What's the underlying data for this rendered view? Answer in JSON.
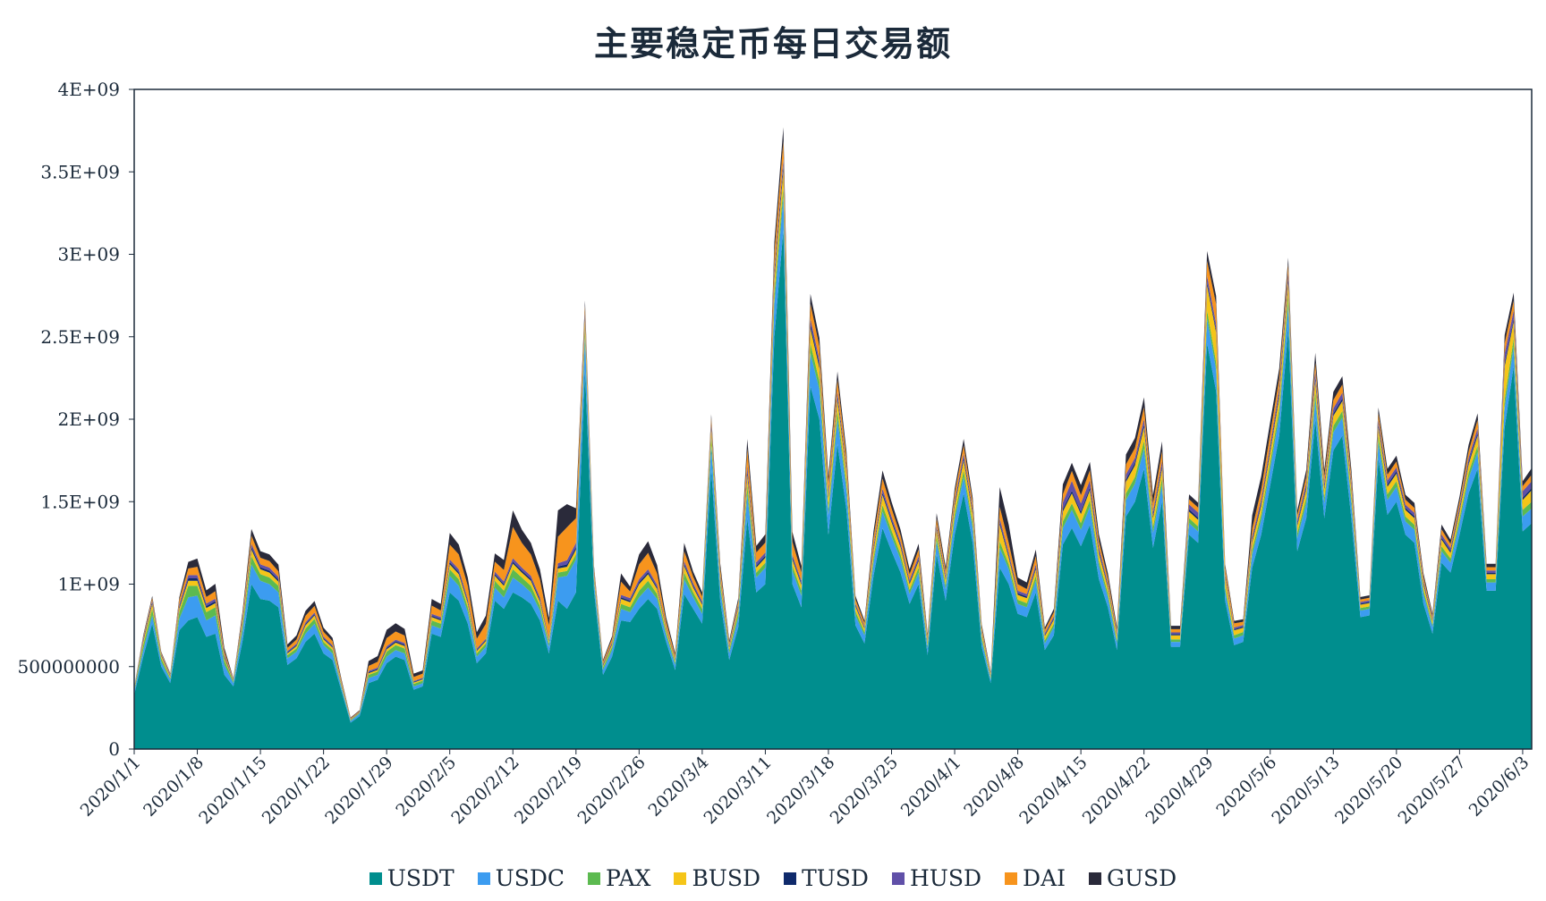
{
  "chart_data": {
    "type": "area",
    "stacked": true,
    "title": "主要稳定币每日交易额",
    "xlabel": "",
    "ylabel": "",
    "ylim": [
      0,
      4000000000
    ],
    "y_ticks": [
      0,
      500000000,
      1000000000,
      1500000000,
      2000000000,
      2500000000,
      3000000000,
      3500000000,
      4000000000
    ],
    "y_tick_labels": [
      "0",
      "500000000",
      "1E+09",
      "1.5E+09",
      "2E+09",
      "2.5E+09",
      "3E+09",
      "3.5E+09",
      "4E+09"
    ],
    "x_tick_labels": [
      "2020/1/1",
      "2020/1/8",
      "2020/1/15",
      "2020/1/22",
      "2020/1/29",
      "2020/2/5",
      "2020/2/12",
      "2020/2/19",
      "2020/2/26",
      "2020/3/4",
      "2020/3/11",
      "2020/3/18",
      "2020/3/25",
      "2020/4/1",
      "2020/4/8",
      "2020/4/15",
      "2020/4/22",
      "2020/4/29",
      "2020/5/6",
      "2020/5/13",
      "2020/5/20",
      "2020/5/27",
      "2020/6/3"
    ],
    "legend_position": "bottom",
    "grid": false,
    "x_start": "2020/1/1",
    "x_end": "2020/6/4",
    "series": [
      {
        "name": "USDT",
        "color": "#008e8e",
        "values": [
          330,
          560,
          760,
          500,
          400,
          720,
          780,
          800,
          680,
          700,
          450,
          380,
          650,
          1000,
          910,
          900,
          860,
          510,
          550,
          650,
          700,
          580,
          540,
          350,
          160,
          200,
          400,
          420,
          520,
          560,
          540,
          360,
          380,
          700,
          680,
          950,
          900,
          760,
          520,
          580,
          900,
          850,
          950,
          920,
          880,
          780,
          580,
          900,
          850,
          950,
          2300,
          960,
          450,
          560,
          780,
          770,
          850,
          910,
          850,
          650,
          480,
          940,
          850,
          760,
          1700,
          900,
          540,
          740,
          1400,
          950,
          1000,
          2500,
          3150,
          1000,
          860,
          2200,
          2000,
          1300,
          1850,
          1450,
          750,
          640,
          1050,
          1340,
          1200,
          1070,
          880,
          1000,
          570,
          1180,
          900,
          1300,
          1550,
          1250,
          620,
          400,
          1100,
          1000,
          820,
          800,
          950,
          600,
          690,
          1240,
          1340,
          1230,
          1360,
          1030,
          860,
          600,
          1410,
          1500,
          1700,
          1220,
          1500,
          620,
          620,
          1300,
          1250,
          2460,
          2170,
          900,
          630,
          650,
          1100,
          1300,
          1600,
          1900,
          2550,
          1200,
          1400,
          2000,
          1400,
          1810,
          1900,
          1400,
          800,
          810,
          1760,
          1420,
          1500,
          1300,
          1250,
          880,
          700,
          1130,
          1070,
          1300,
          1550,
          1700,
          960,
          960,
          1950,
          2320,
          1320,
          1370
        ]
      },
      {
        "name": "USDC",
        "color": "#3c9cf0",
        "values": [
          20,
          40,
          50,
          30,
          20,
          70,
          140,
          130,
          100,
          110,
          60,
          20,
          60,
          120,
          110,
          100,
          90,
          40,
          40,
          50,
          60,
          50,
          40,
          20,
          10,
          15,
          30,
          30,
          40,
          40,
          40,
          20,
          20,
          50,
          50,
          100,
          90,
          70,
          40,
          40,
          80,
          70,
          90,
          80,
          70,
          60,
          40,
          140,
          200,
          200,
          200,
          50,
          30,
          40,
          70,
          60,
          70,
          70,
          60,
          40,
          30,
          90,
          70,
          60,
          140,
          70,
          40,
          60,
          150,
          90,
          100,
          200,
          200,
          80,
          70,
          200,
          180,
          120,
          150,
          120,
          60,
          50,
          80,
          100,
          90,
          80,
          60,
          70,
          40,
          80,
          70,
          90,
          100,
          90,
          40,
          20,
          120,
          90,
          60,
          60,
          70,
          40,
          50,
          100,
          110,
          100,
          110,
          80,
          60,
          40,
          100,
          110,
          120,
          90,
          100,
          30,
          30,
          70,
          70,
          150,
          130,
          60,
          40,
          40,
          80,
          90,
          100,
          120,
          150,
          80,
          90,
          120,
          90,
          110,
          110,
          90,
          40,
          40,
          100,
          90,
          90,
          80,
          80,
          60,
          40,
          70,
          60,
          70,
          90,
          100,
          50,
          50,
          120,
          120,
          90,
          90
        ]
      },
      {
        "name": "PAX",
        "color": "#5cba50",
        "values": [
          10,
          30,
          40,
          20,
          10,
          40,
          70,
          60,
          50,
          50,
          30,
          10,
          30,
          50,
          40,
          40,
          40,
          20,
          20,
          30,
          30,
          20,
          20,
          10,
          5,
          5,
          20,
          20,
          30,
          30,
          30,
          15,
          15,
          30,
          30,
          40,
          40,
          30,
          20,
          20,
          40,
          40,
          50,
          40,
          40,
          30,
          20,
          30,
          30,
          30,
          40,
          20,
          15,
          20,
          30,
          30,
          40,
          40,
          30,
          20,
          15,
          40,
          30,
          30,
          50,
          30,
          20,
          30,
          50,
          30,
          30,
          60,
          60,
          30,
          30,
          60,
          50,
          40,
          50,
          40,
          25,
          20,
          30,
          40,
          35,
          30,
          25,
          30,
          20,
          30,
          25,
          35,
          40,
          30,
          20,
          10,
          40,
          30,
          25,
          25,
          30,
          20,
          20,
          40,
          40,
          40,
          40,
          30,
          25,
          20,
          40,
          40,
          50,
          35,
          40,
          15,
          15,
          30,
          30,
          50,
          45,
          25,
          20,
          20,
          30,
          35,
          40,
          45,
          50,
          30,
          35,
          45,
          35,
          40,
          40,
          35,
          15,
          15,
          40,
          35,
          35,
          30,
          30,
          25,
          15,
          30,
          25,
          30,
          35,
          40,
          20,
          20,
          50,
          50,
          40,
          40
        ]
      },
      {
        "name": "BUSD",
        "color": "#f5c518",
        "values": [
          5,
          20,
          30,
          15,
          10,
          20,
          30,
          30,
          25,
          25,
          15,
          5,
          20,
          40,
          30,
          30,
          25,
          10,
          15,
          20,
          20,
          15,
          15,
          8,
          3,
          3,
          10,
          10,
          15,
          15,
          15,
          8,
          8,
          20,
          20,
          30,
          30,
          25,
          15,
          15,
          30,
          30,
          35,
          30,
          30,
          25,
          15,
          25,
          25,
          30,
          60,
          20,
          10,
          15,
          30,
          30,
          40,
          40,
          30,
          20,
          12,
          40,
          30,
          25,
          50,
          30,
          15,
          25,
          60,
          30,
          30,
          80,
          100,
          40,
          35,
          90,
          80,
          60,
          70,
          60,
          30,
          20,
          40,
          60,
          50,
          45,
          35,
          40,
          20,
          40,
          30,
          50,
          60,
          50,
          25,
          12,
          100,
          40,
          30,
          30,
          40,
          25,
          25,
          60,
          60,
          55,
          60,
          45,
          35,
          25,
          70,
          70,
          80,
          55,
          60,
          25,
          25,
          40,
          40,
          150,
          180,
          50,
          30,
          25,
          45,
          50,
          60,
          70,
          80,
          45,
          50,
          70,
          50,
          60,
          60,
          50,
          20,
          20,
          50,
          45,
          45,
          40,
          40,
          30,
          20,
          40,
          35,
          40,
          50,
          60,
          30,
          30,
          200,
          100,
          60,
          70
        ]
      },
      {
        "name": "TUSD",
        "color": "#0f2a6b",
        "values": [
          3,
          8,
          10,
          5,
          4,
          10,
          15,
          15,
          12,
          12,
          8,
          3,
          10,
          15,
          12,
          12,
          12,
          6,
          6,
          8,
          8,
          7,
          6,
          4,
          2,
          2,
          6,
          6,
          8,
          8,
          8,
          4,
          4,
          8,
          8,
          12,
          12,
          10,
          6,
          6,
          10,
          10,
          12,
          12,
          12,
          10,
          6,
          12,
          15,
          15,
          20,
          8,
          5,
          6,
          10,
          10,
          12,
          12,
          10,
          6,
          5,
          12,
          10,
          8,
          15,
          10,
          6,
          8,
          20,
          12,
          12,
          25,
          30,
          12,
          10,
          25,
          22,
          15,
          20,
          15,
          8,
          6,
          12,
          15,
          14,
          12,
          10,
          12,
          6,
          12,
          10,
          14,
          16,
          14,
          6,
          4,
          14,
          12,
          10,
          10,
          12,
          7,
          8,
          15,
          16,
          15,
          16,
          12,
          10,
          7,
          16,
          16,
          18,
          14,
          16,
          7,
          7,
          14,
          14,
          20,
          18,
          10,
          7,
          7,
          12,
          14,
          16,
          18,
          20,
          12,
          14,
          18,
          14,
          16,
          16,
          14,
          7,
          7,
          16,
          14,
          14,
          12,
          12,
          10,
          7,
          12,
          11,
          12,
          14,
          16,
          8,
          8,
          20,
          18,
          14,
          14
        ]
      },
      {
        "name": "HUSD",
        "color": "#6050a8",
        "values": [
          3,
          10,
          12,
          6,
          5,
          15,
          20,
          20,
          15,
          15,
          10,
          4,
          12,
          20,
          18,
          18,
          16,
          8,
          8,
          10,
          10,
          9,
          8,
          5,
          2,
          2,
          8,
          8,
          10,
          10,
          10,
          5,
          5,
          12,
          12,
          18,
          18,
          15,
          8,
          8,
          16,
          16,
          20,
          18,
          18,
          15,
          8,
          20,
          25,
          25,
          30,
          12,
          6,
          8,
          15,
          15,
          18,
          18,
          15,
          8,
          6,
          18,
          15,
          12,
          25,
          15,
          8,
          12,
          40,
          20,
          20,
          40,
          40,
          15,
          15,
          35,
          30,
          20,
          30,
          20,
          10,
          8,
          18,
          25,
          20,
          18,
          15,
          18,
          8,
          18,
          15,
          20,
          25,
          20,
          10,
          5,
          25,
          18,
          15,
          15,
          18,
          10,
          12,
          40,
          60,
          50,
          45,
          25,
          15,
          10,
          30,
          30,
          35,
          25,
          30,
          10,
          10,
          30,
          30,
          40,
          35,
          15,
          10,
          10,
          20,
          25,
          30,
          35,
          40,
          20,
          25,
          40,
          25,
          30,
          35,
          25,
          10,
          10,
          30,
          25,
          25,
          20,
          20,
          15,
          10,
          20,
          18,
          20,
          25,
          30,
          15,
          15,
          60,
          50,
          40,
          40
        ]
      },
      {
        "name": "DAI",
        "color": "#f7941d",
        "values": [
          2,
          10,
          15,
          8,
          6,
          30,
          40,
          50,
          40,
          45,
          20,
          5,
          25,
          50,
          40,
          40,
          35,
          20,
          25,
          40,
          40,
          30,
          25,
          15,
          5,
          5,
          30,
          35,
          50,
          50,
          45,
          25,
          25,
          50,
          40,
          90,
          90,
          80,
          60,
          90,
          60,
          70,
          190,
          150,
          130,
          110,
          80,
          160,
          200,
          150,
          40,
          25,
          15,
          20,
          80,
          40,
          90,
          100,
          70,
          30,
          20,
          60,
          40,
          30,
          30,
          40,
          15,
          20,
          100,
          60,
          60,
          100,
          110,
          80,
          50,
          90,
          80,
          60,
          70,
          60,
          25,
          20,
          50,
          60,
          50,
          40,
          35,
          40,
          20,
          40,
          30,
          40,
          50,
          40,
          20,
          10,
          70,
          60,
          40,
          30,
          50,
          20,
          25,
          50,
          60,
          50,
          60,
          40,
          30,
          20,
          60,
          60,
          70,
          50,
          60,
          20,
          20,
          30,
          30,
          90,
          120,
          40,
          25,
          20,
          50,
          60,
          70,
          60,
          50,
          30,
          40,
          50,
          40,
          50,
          50,
          40,
          15,
          15,
          40,
          35,
          35,
          30,
          30,
          25,
          15,
          30,
          25,
          30,
          40,
          50,
          20,
          20,
          60,
          60,
          30,
          40
        ]
      },
      {
        "name": "GUSD",
        "color": "#2a2a3a",
        "values": [
          2,
          10,
          12,
          6,
          5,
          15,
          40,
          50,
          40,
          45,
          20,
          4,
          20,
          40,
          40,
          40,
          40,
          20,
          25,
          30,
          30,
          25,
          20,
          10,
          4,
          4,
          30,
          35,
          50,
          50,
          40,
          20,
          20,
          40,
          40,
          70,
          60,
          50,
          40,
          50,
          50,
          60,
          100,
          80,
          70,
          60,
          45,
          160,
          140,
          60,
          30,
          15,
          10,
          15,
          50,
          30,
          60,
          70,
          50,
          25,
          15,
          50,
          30,
          25,
          20,
          30,
          15,
          20,
          60,
          40,
          50,
          70,
          80,
          60,
          40,
          60,
          50,
          40,
          50,
          40,
          20,
          15,
          40,
          50,
          40,
          35,
          30,
          35,
          15,
          30,
          25,
          30,
          40,
          30,
          15,
          8,
          120,
          110,
          40,
          40,
          40,
          15,
          20,
          60,
          50,
          60,
          50,
          40,
          30,
          20,
          60,
          60,
          60,
          50,
          60,
          20,
          20,
          30,
          30,
          60,
          50,
          20,
          15,
          15,
          80,
          80,
          70,
          60,
          40,
          30,
          40,
          60,
          40,
          50,
          50,
          40,
          15,
          15,
          35,
          35,
          35,
          30,
          30,
          20,
          15,
          30,
          25,
          30,
          40,
          40,
          20,
          20,
          50,
          50,
          30,
          40
        ]
      }
    ],
    "value_unit_note": ""
  }
}
